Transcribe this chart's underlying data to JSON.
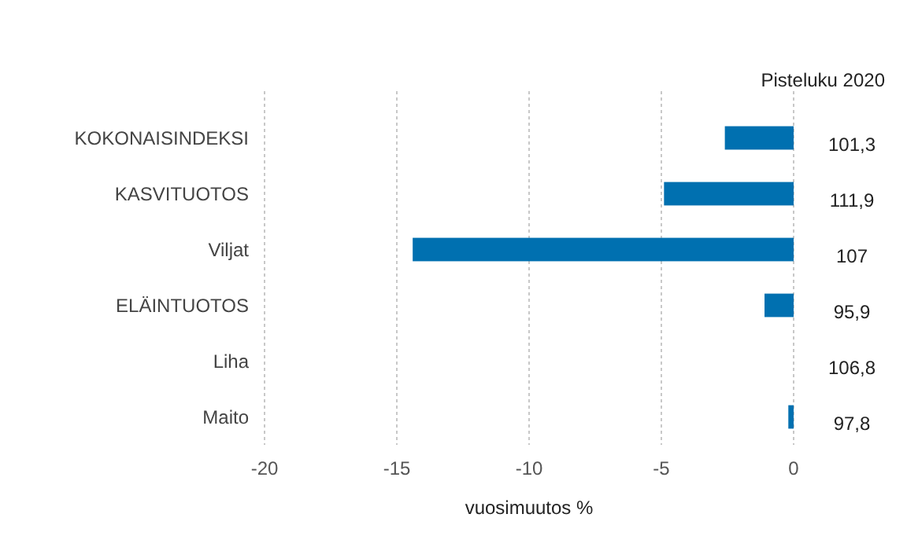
{
  "chart_data": {
    "type": "bar",
    "orientation": "horizontal",
    "xlabel": "vuosimuutos %",
    "categories": [
      "KOKONAISINDEKSI",
      "KASVITUOTOS",
      "Viljat",
      "ELÄINTUOTOS",
      "Liha",
      "Maito"
    ],
    "values": [
      -2.6,
      -4.9,
      -14.4,
      -1.1,
      0,
      -0.2
    ],
    "color": "#0070b0",
    "xlim": [
      -20,
      0
    ],
    "xticks": [
      -20,
      -15,
      -10,
      -5,
      0
    ],
    "grid": "x",
    "annotations": [
      "Pisteluku 2020",
      "101,3",
      "111,9",
      "107",
      "95,9",
      "106,8",
      "97,8"
    ]
  }
}
